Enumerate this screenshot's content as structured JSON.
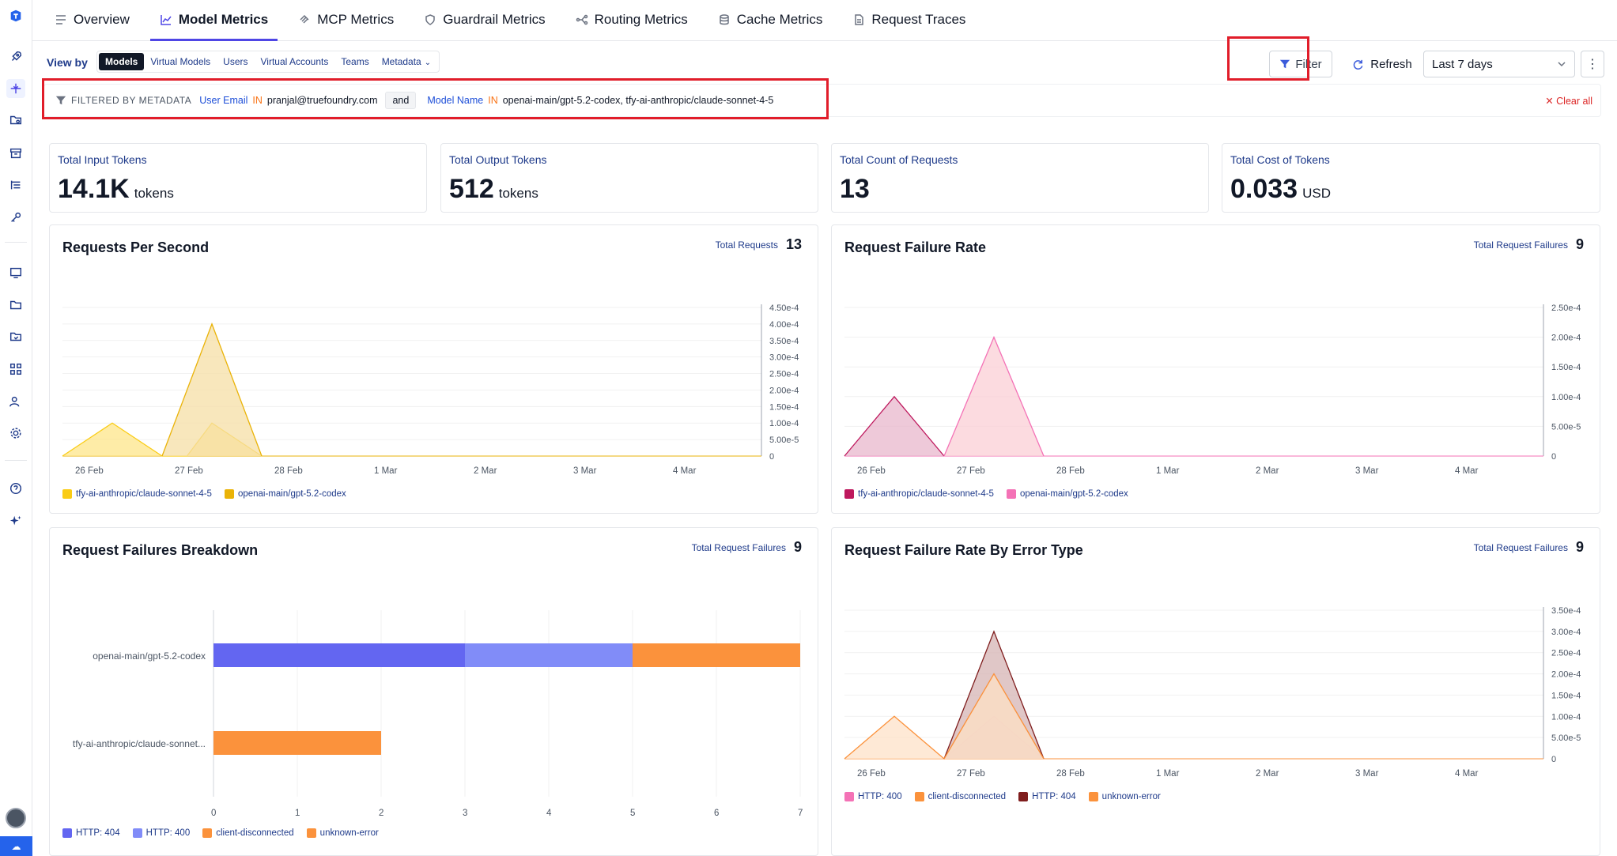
{
  "tabs": [
    {
      "label": "Overview",
      "icon": "list-icon"
    },
    {
      "label": "Model Metrics",
      "icon": "line-chart-icon"
    },
    {
      "label": "MCP Metrics",
      "icon": "mcp-icon"
    },
    {
      "label": "Guardrail Metrics",
      "icon": "shield-icon"
    },
    {
      "label": "Routing Metrics",
      "icon": "routing-icon"
    },
    {
      "label": "Cache Metrics",
      "icon": "database-icon"
    },
    {
      "label": "Request Traces",
      "icon": "document-icon"
    }
  ],
  "active_tab": "Model Metrics",
  "toolbar": {
    "view_by_label": "View by",
    "view_by_options": [
      "Models",
      "Virtual Models",
      "Users",
      "Virtual Accounts",
      "Teams",
      "Metadata"
    ],
    "view_by_selected": "Models",
    "filter_label": "Filter",
    "refresh_label": "Refresh",
    "range_value": "Last 7 days",
    "more_icon": "⋮"
  },
  "filterbar": {
    "label": "FILTERED BY METADATA",
    "field1": "User Email",
    "op1": "IN",
    "val1": "pranjal@truefoundry.com",
    "join": "and",
    "field2": "Model Name",
    "op2": "IN",
    "val2": "openai-main/gpt-5.2-codex, tfy-ai-anthropic/claude-sonnet-4-5",
    "clear_label": "✕ Clear all"
  },
  "stats": [
    {
      "title": "Total Input Tokens",
      "value": "14.1K",
      "unit": "tokens"
    },
    {
      "title": "Total Output Tokens",
      "value": "512",
      "unit": "tokens"
    },
    {
      "title": "Total Count of Requests",
      "value": "13",
      "unit": ""
    },
    {
      "title": "Total Cost of Tokens",
      "value": "0.033",
      "unit": "USD"
    }
  ],
  "panels": {
    "rps": {
      "title": "Requests Per Second",
      "total_label": "Total Requests",
      "total_value": "13"
    },
    "fail_rate": {
      "title": "Request Failure Rate",
      "total_label": "Total Request Failures",
      "total_value": "9"
    },
    "breakdown": {
      "title": "Request Failures Breakdown",
      "total_label": "Total Request Failures",
      "total_value": "9"
    },
    "by_error": {
      "title": "Request Failure Rate By Error Type",
      "total_label": "Total Request Failures",
      "total_value": "9"
    }
  },
  "chart_data": [
    {
      "type": "area",
      "title": "Requests Per Second",
      "x": [
        "26 Feb",
        "27 Feb",
        "28 Feb",
        "1 Mar",
        "2 Mar",
        "3 Mar",
        "4 Mar"
      ],
      "yticks": [
        "0",
        "5.00e-5",
        "1.00e-4",
        "1.50e-4",
        "2.00e-4",
        "2.50e-4",
        "3.00e-4",
        "3.50e-4",
        "4.00e-4",
        "4.50e-4"
      ],
      "ylim": [
        0,
        0.00045
      ],
      "series": [
        {
          "name": "tfy-ai-anthropic/claude-sonnet-4-5",
          "color": "#fde68a",
          "stroke": "#facc15",
          "points": [
            [
              -0.25,
              0
            ],
            [
              0.25,
              0.0001
            ],
            [
              0.75,
              0
            ],
            [
              1.0,
              0
            ],
            [
              1.25,
              0.0001
            ],
            [
              1.75,
              0
            ]
          ]
        },
        {
          "name": "openai-main/gpt-5.2-codex",
          "color": "#f5dfa6",
          "stroke": "#eab308",
          "points": [
            [
              0.75,
              0
            ],
            [
              1.25,
              0.0004
            ],
            [
              1.75,
              0
            ]
          ]
        }
      ],
      "baseline_end": 6.75
    },
    {
      "type": "area",
      "title": "Request Failure Rate",
      "x": [
        "26 Feb",
        "27 Feb",
        "28 Feb",
        "1 Mar",
        "2 Mar",
        "3 Mar",
        "4 Mar"
      ],
      "yticks": [
        "0",
        "5.00e-5",
        "1.00e-4",
        "1.50e-4",
        "2.00e-4",
        "2.50e-4"
      ],
      "ylim": [
        0,
        0.00025
      ],
      "series": [
        {
          "name": "tfy-ai-anthropic/claude-sonnet-4-5",
          "color": "#e8b7cc",
          "stroke": "#be185d",
          "points": [
            [
              -0.25,
              0
            ],
            [
              0.25,
              0.0001
            ],
            [
              0.75,
              0
            ]
          ]
        },
        {
          "name": "openai-main/gpt-5.2-codex",
          "color": "#fbcfd6",
          "stroke": "#f472b6",
          "points": [
            [
              0.75,
              0
            ],
            [
              1.25,
              0.0002
            ],
            [
              1.75,
              0
            ]
          ]
        }
      ],
      "baseline_end": 6.75
    },
    {
      "type": "bar",
      "title": "Request Failures Breakdown",
      "categories": [
        "openai-main/gpt-5.2-codex",
        "tfy-ai-anthropic/claude-sonnet..."
      ],
      "xticks": [
        "0",
        "1",
        "2",
        "3",
        "4",
        "5",
        "6",
        "7"
      ],
      "xlim": [
        0,
        7
      ],
      "series": [
        {
          "name": "HTTP: 404",
          "color": "#6366f1",
          "values": [
            3,
            0
          ]
        },
        {
          "name": "HTTP: 400",
          "color": "#818cf8",
          "values": [
            2,
            0
          ]
        },
        {
          "name": "client-disconnected",
          "color": "#fb923c",
          "values": [
            2,
            0
          ]
        },
        {
          "name": "unknown-error",
          "color": "#fb923c",
          "values": [
            0,
            2
          ]
        }
      ]
    },
    {
      "type": "area",
      "title": "Request Failure Rate By Error Type",
      "x": [
        "26 Feb",
        "27 Feb",
        "28 Feb",
        "1 Mar",
        "2 Mar",
        "3 Mar",
        "4 Mar"
      ],
      "yticks": [
        "0",
        "5.00e-5",
        "1.00e-4",
        "1.50e-4",
        "2.00e-4",
        "2.50e-4",
        "3.00e-4",
        "3.50e-4"
      ],
      "ylim": [
        0,
        0.00035
      ],
      "series": [
        {
          "name": "HTTP: 400",
          "color": "#fbcfd6",
          "stroke": "#f472b6",
          "points": [
            [
              0.75,
              0
            ],
            [
              1.25,
              0.0001
            ],
            [
              1.75,
              0
            ]
          ]
        },
        {
          "name": "client-disconnected",
          "color": "#fde2c8",
          "stroke": "#fb923c",
          "points": [
            [
              -0.25,
              0
            ],
            [
              0.25,
              0.0001
            ],
            [
              0.75,
              0
            ],
            [
              1.25,
              0.0002
            ],
            [
              1.75,
              0
            ]
          ]
        },
        {
          "name": "HTTP: 404",
          "color": "#d6b4b4",
          "stroke": "#7f1d1d",
          "points": [
            [
              0.75,
              0
            ],
            [
              1.25,
              0.0003
            ],
            [
              1.75,
              0
            ]
          ]
        },
        {
          "name": "unknown-error",
          "color": "#fde2c8",
          "stroke": "#fb923c",
          "points": [
            [
              0.75,
              0
            ],
            [
              1.25,
              0.0002
            ],
            [
              1.75,
              0
            ]
          ]
        }
      ],
      "baseline_end": 6.75
    }
  ]
}
